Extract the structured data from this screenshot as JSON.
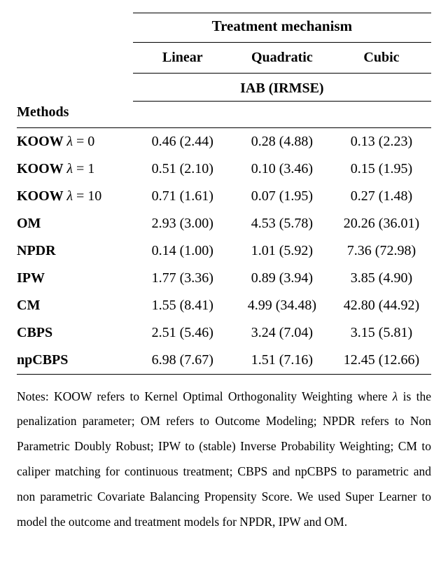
{
  "type": "table",
  "colors": {
    "background": "#ffffff",
    "text": "#000000",
    "rule": "#000000"
  },
  "typography": {
    "font_family": "Times New Roman",
    "body_fontsize_pt": 15,
    "header_bold": true,
    "notes_fontsize_pt": 13,
    "notes_line_height": 2.05,
    "notes_align": "justify"
  },
  "headers": {
    "treatment_mechanism": "Treatment mechanism",
    "linear": "Linear",
    "quadratic": "Quadratic",
    "cubic": "Cubic",
    "iab_irmse": "IAB (IRMSE)",
    "methods": "Methods"
  },
  "columns": [
    "Linear",
    "Quadratic",
    "Cubic"
  ],
  "column_widths_pct": [
    28,
    24,
    24,
    24
  ],
  "rows": [
    {
      "name_html": "KOOW <span class=\"lam\">λ</span> <span class=\"eq\">= 0</span>",
      "linear": "0.46 (2.44)",
      "quadratic": "0.28 (4.88)",
      "cubic": "0.13 (2.23)"
    },
    {
      "name_html": "KOOW <span class=\"lam\">λ</span> <span class=\"eq\">= 1</span>",
      "linear": "0.51 (2.10)",
      "quadratic": "0.10 (3.46)",
      "cubic": "0.15 (1.95)"
    },
    {
      "name_html": "KOOW <span class=\"lam\">λ</span> <span class=\"eq\">= 10</span>",
      "linear": "0.71 (1.61)",
      "quadratic": "0.07 (1.95)",
      "cubic": "0.27 (1.48)"
    },
    {
      "name_html": "OM",
      "linear": "2.93 (3.00)",
      "quadratic": "4.53 (5.78)",
      "cubic": "20.26 (36.01)"
    },
    {
      "name_html": "NPDR",
      "linear": "0.14 (1.00)",
      "quadratic": "1.01 (5.92)",
      "cubic": "7.36 (72.98)"
    },
    {
      "name_html": "IPW",
      "linear": "1.77 (3.36)",
      "quadratic": "0.89 (3.94)",
      "cubic": "3.85 (4.90)"
    },
    {
      "name_html": "CM",
      "linear": "1.55 (8.41)",
      "quadratic": "4.99 (34.48)",
      "cubic": "42.80 (44.92)"
    },
    {
      "name_html": "CBPS",
      "linear": "2.51 (5.46)",
      "quadratic": "3.24 (7.04)",
      "cubic": "3.15 (5.81)"
    },
    {
      "name_html": "npCBPS",
      "linear": "6.98 (7.67)",
      "quadratic": "1.51 (7.16)",
      "cubic": "12.45 (12.66)"
    }
  ],
  "notes": "Notes: KOOW refers to Kernel Optimal Orthogonality Weighting where λ is the penalization parameter; OM refers to Outcome Modeling; NPDR refers to Non Parametric Doubly Robust; IPW to (stable) Inverse Probability Weighting; CM to caliper matching for continuous treatment; CBPS and npCBPS to parametric and non parametric Covariate Balancing Propensity Score. We used Super Learner to model the outcome and treatment models for NPDR, IPW and OM."
}
